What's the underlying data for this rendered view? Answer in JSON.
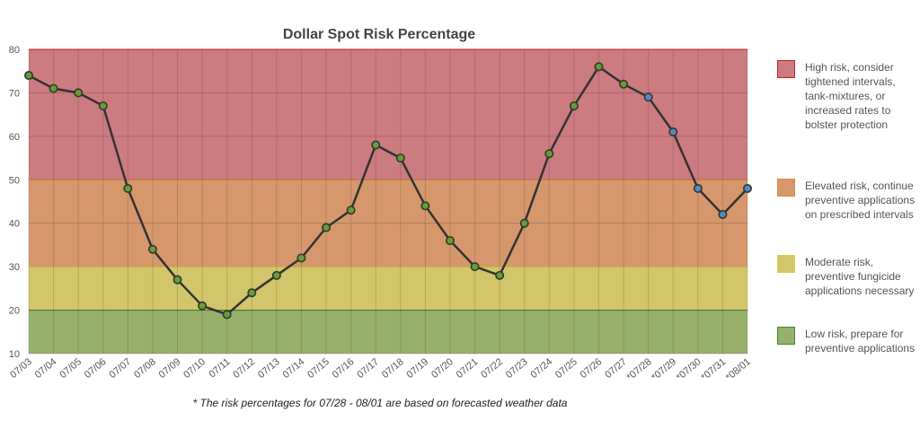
{
  "chart_data": {
    "type": "line",
    "title": "Dollar Spot Risk Percentage",
    "xlabel": "",
    "ylabel": "",
    "ylim": [
      10,
      80
    ],
    "yticks": [
      10,
      20,
      30,
      40,
      50,
      60,
      70,
      80
    ],
    "grid": true,
    "legend": "right",
    "categories": [
      "07/03",
      "07/04",
      "07/05",
      "07/06",
      "07/07",
      "07/08",
      "07/09",
      "07/10",
      "07/11",
      "07/12",
      "07/13",
      "07/14",
      "07/15",
      "07/16",
      "07/17",
      "07/18",
      "07/19",
      "07/20",
      "07/21",
      "07/22",
      "07/23",
      "07/24",
      "07/25",
      "07/26",
      "07/27",
      "*07/28",
      "*07/29",
      "*07/30",
      "*07/31",
      "*08/01"
    ],
    "series": [
      {
        "values": [
          74,
          71,
          70,
          67,
          48,
          34,
          27,
          21,
          19,
          24,
          28,
          32,
          39,
          43,
          58,
          55,
          44,
          36,
          30,
          28,
          40,
          56,
          67,
          76,
          72,
          69,
          61,
          48,
          42,
          48
        ],
        "forecast": [
          false,
          false,
          false,
          false,
          false,
          false,
          false,
          false,
          false,
          false,
          false,
          false,
          false,
          false,
          false,
          false,
          false,
          false,
          false,
          false,
          false,
          false,
          false,
          false,
          false,
          true,
          true,
          true,
          true,
          true
        ],
        "line_color": "#333333",
        "point_color": "#6a9a3a",
        "forecast_point_color": "#5a86c5"
      }
    ],
    "bands": [
      {
        "from": 50,
        "to": 80,
        "color": "#cc7b7f",
        "edge": "#cc2020",
        "label": "High risk, consider tightened intervals, tank-mixtures, or increased rates to bolster protection"
      },
      {
        "from": 30,
        "to": 50,
        "color": "#d6976c",
        "edge": "#e08a40",
        "label": "Elevated risk, continue preventive applications on prescribed intervals"
      },
      {
        "from": 20,
        "to": 30,
        "color": "#d2c56a",
        "edge": "#e0d040",
        "label": "Moderate risk, preventive fungicide applications necessary"
      },
      {
        "from": 10,
        "to": 20,
        "color": "#97b06c",
        "edge": "#3a8a2a",
        "label": "Low risk, prepare for preventive applications"
      }
    ],
    "footnote": "* The risk percentages for 07/28 - 08/01 are based on forecasted weather data"
  }
}
